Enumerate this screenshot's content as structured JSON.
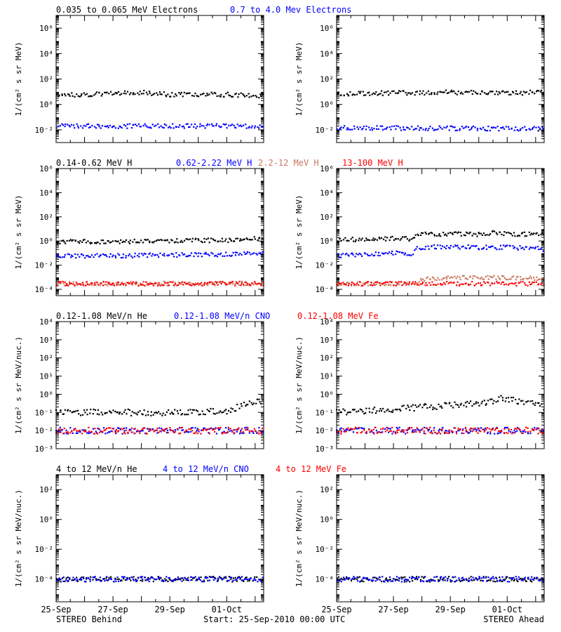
{
  "footer": {
    "left": "STEREO Behind",
    "center": "Start: 25-Sep-2010 00:00 UTC",
    "right": "STEREO Ahead"
  },
  "colors": {
    "black": "#000000",
    "blue": "#0000ff",
    "tan": "#c87860",
    "red": "#ff0000"
  },
  "chart_data": [
    {
      "type": "scatter",
      "panel": "electrons",
      "legend": [
        {
          "text": "0.035 to 0.065 MeV Electrons",
          "color": "#000000"
        },
        {
          "text": "0.7 to 4.0 Mev Electrons",
          "color": "#0000ff"
        }
      ],
      "ylabel": "1/(cm² s sr MeV)",
      "y_scale": "log",
      "ylim": [
        0.001,
        10000000
      ],
      "y_tick_labels": [
        "10⁻²",
        "10⁰",
        "10²",
        "10⁴",
        "10⁶"
      ],
      "x_tick_labels": [
        "25-Sep",
        "27-Sep",
        "29-Sep",
        "01-Oct"
      ],
      "xlim_days": [
        0,
        7.3
      ],
      "behind": [
        {
          "name": "0.035 to 0.065 MeV Electrons",
          "color": "#000000",
          "x": [
            0,
            1,
            2,
            3,
            4,
            5,
            6,
            7.3
          ],
          "y": [
            6,
            6,
            7,
            9,
            6,
            6,
            6,
            5
          ]
        },
        {
          "name": "0.7 to 4.0 Mev Electrons",
          "color": "#0000ff",
          "x": [
            0,
            7.3
          ],
          "y": [
            0.02,
            0.02
          ]
        }
      ],
      "ahead": [
        {
          "name": "0.035 to 0.065 MeV Electrons",
          "color": "#000000",
          "x": [
            0,
            2,
            4,
            6,
            7.3
          ],
          "y": [
            7,
            8,
            9,
            8,
            9
          ]
        },
        {
          "name": "0.7 to 4.0 Mev Electrons",
          "color": "#0000ff",
          "x": [
            0,
            7.3
          ],
          "y": [
            0.015,
            0.012
          ]
        }
      ]
    },
    {
      "type": "scatter",
      "panel": "protons",
      "legend": [
        {
          "text": "0.14-0.62 MeV H",
          "color": "#000000"
        },
        {
          "text": "0.62-2.22 MeV H",
          "color": "#0000ff"
        },
        {
          "text": "2.2-12 MeV H",
          "color": "#c87860"
        },
        {
          "text": "13-100 MeV H",
          "color": "#ff0000"
        }
      ],
      "ylabel": "1/(cm² s sr MeV)",
      "y_scale": "log",
      "ylim": [
        3e-05,
        1000000
      ],
      "y_tick_labels": [
        "10⁻⁴",
        "10⁻²",
        "10⁰",
        "10²",
        "10⁴",
        "10⁶"
      ],
      "x_tick_labels": [
        "25-Sep",
        "27-Sep",
        "29-Sep",
        "01-Oct"
      ],
      "xlim_days": [
        0,
        7.3
      ],
      "behind": [
        {
          "name": "0.14-0.62 MeV H",
          "color": "#000000",
          "x": [
            0,
            2,
            4,
            5,
            6,
            6.5,
            7,
            7.3
          ],
          "y": [
            0.9,
            0.9,
            1.0,
            1.1,
            1.2,
            1.1,
            1.6,
            1.8
          ]
        },
        {
          "name": "0.62-2.22 MeV H",
          "color": "#0000ff",
          "x": [
            0,
            2,
            4,
            6,
            7.3
          ],
          "y": [
            0.06,
            0.06,
            0.07,
            0.08,
            0.1
          ]
        },
        {
          "name": "2.2-12 MeV H",
          "color": "#c87860",
          "x": [
            0,
            7.3
          ],
          "y": [
            0.0003,
            0.0003
          ]
        },
        {
          "name": "13-100 MeV H",
          "color": "#ff0000",
          "x": [
            0,
            7.3
          ],
          "y": [
            0.0003,
            0.0003
          ]
        }
      ],
      "ahead": [
        {
          "name": "0.14-0.62 MeV H",
          "color": "#000000",
          "x": [
            0,
            1,
            2,
            2.7,
            2.8,
            3,
            4,
            5,
            5.5,
            6,
            7,
            7.3
          ],
          "y": [
            1.2,
            1.5,
            1.6,
            1.5,
            3,
            3.5,
            4,
            3.5,
            5,
            4,
            3.5,
            3.5
          ]
        },
        {
          "name": "0.62-2.22 MeV H",
          "color": "#0000ff",
          "x": [
            0,
            1,
            2,
            2.7,
            2.8,
            3,
            4,
            5,
            6,
            7,
            7.3
          ],
          "y": [
            0.06,
            0.08,
            0.1,
            0.09,
            0.25,
            0.3,
            0.35,
            0.3,
            0.3,
            0.25,
            0.2
          ]
        },
        {
          "name": "2.2-12 MeV H",
          "color": "#c87860",
          "x": [
            0,
            2.7,
            3,
            4,
            5,
            6,
            7,
            7.3
          ],
          "y": [
            0.0003,
            0.0003,
            0.0007,
            0.0009,
            0.0009,
            0.0009,
            0.0008,
            0.0007
          ]
        },
        {
          "name": "13-100 MeV H",
          "color": "#ff0000",
          "x": [
            0,
            7.3
          ],
          "y": [
            0.0003,
            0.0003
          ]
        }
      ]
    },
    {
      "type": "scatter",
      "panel": "heavy_low",
      "legend": [
        {
          "text": "0.12-1.08 MeV/n He",
          "color": "#000000"
        },
        {
          "text": "0.12-1.08 MeV/n CNO",
          "color": "#0000ff"
        },
        {
          "text": "0.12-1.08 MeV Fe",
          "color": "#ff0000"
        }
      ],
      "ylabel": "1/(cm² s sr MeV/nuc.)",
      "y_scale": "log",
      "ylim": [
        0.001,
        10000
      ],
      "y_tick_labels": [
        "10⁻³",
        "10⁻²",
        "10⁻¹",
        "10⁰",
        "10¹",
        "10²",
        "10³",
        "10⁴"
      ],
      "x_tick_labels": [
        "25-Sep",
        "27-Sep",
        "29-Sep",
        "01-Oct"
      ],
      "xlim_days": [
        0,
        7.3
      ],
      "behind": [
        {
          "name": "0.12-1.08 MeV/n He",
          "color": "#000000",
          "x": [
            0,
            2,
            4,
            6,
            6.7,
            7.3
          ],
          "y": [
            0.1,
            0.1,
            0.1,
            0.12,
            0.3,
            0.4
          ]
        },
        {
          "name": "0.12-1.08 MeV/n CNO",
          "color": "#0000ff",
          "x": [
            0,
            7.3
          ],
          "y": [
            0.01,
            0.01
          ]
        },
        {
          "name": "0.12-1.08 MeV Fe",
          "color": "#ff0000",
          "x": [
            0,
            7.3
          ],
          "y": [
            0.01,
            0.01
          ]
        }
      ],
      "ahead": [
        {
          "name": "0.12-1.08 MeV/n He",
          "color": "#000000",
          "x": [
            0,
            2,
            3,
            4,
            5,
            5.8,
            6,
            7,
            7.3
          ],
          "y": [
            0.1,
            0.15,
            0.2,
            0.25,
            0.3,
            0.6,
            0.5,
            0.3,
            0.2
          ]
        },
        {
          "name": "0.12-1.08 MeV/n CNO",
          "color": "#0000ff",
          "x": [
            0,
            7.3
          ],
          "y": [
            0.01,
            0.01
          ]
        },
        {
          "name": "0.12-1.08 MeV Fe",
          "color": "#ff0000",
          "x": [
            0,
            7.3
          ],
          "y": [
            0.01,
            0.01
          ]
        }
      ]
    },
    {
      "type": "scatter",
      "panel": "heavy_high",
      "legend": [
        {
          "text": "4 to 12 MeV/n He",
          "color": "#000000"
        },
        {
          "text": "4 to 12 MeV/n CNO",
          "color": "#0000ff"
        },
        {
          "text": "4 to 12 MeV Fe",
          "color": "#ff0000"
        }
      ],
      "ylabel": "1/(cm² s sr MeV/nuc.)",
      "y_scale": "log",
      "ylim": [
        3e-06,
        1000
      ],
      "y_tick_labels": [
        "10⁻⁴",
        "10⁻²",
        "10⁰",
        "10²"
      ],
      "x_tick_labels": [
        "25-Sep",
        "27-Sep",
        "29-Sep",
        "01-Oct"
      ],
      "xlim_days": [
        0,
        7.3
      ],
      "behind": [
        {
          "name": "4 to 12 MeV/n He",
          "color": "#000000",
          "x": [
            0,
            7.3
          ],
          "y": [
            0.0001,
            0.0001
          ]
        },
        {
          "name": "4 to 12 MeV/n CNO",
          "color": "#0000ff",
          "x": [
            0,
            7.3
          ],
          "y": [
            0.0001,
            0.0001
          ]
        }
      ],
      "ahead": [
        {
          "name": "4 to 12 MeV/n He",
          "color": "#000000",
          "x": [
            0,
            7.3
          ],
          "y": [
            0.0001,
            0.0001
          ]
        },
        {
          "name": "4 to 12 MeV/n CNO",
          "color": "#0000ff",
          "x": [
            0,
            7.3
          ],
          "y": [
            0.0001,
            0.0001
          ]
        }
      ]
    }
  ]
}
